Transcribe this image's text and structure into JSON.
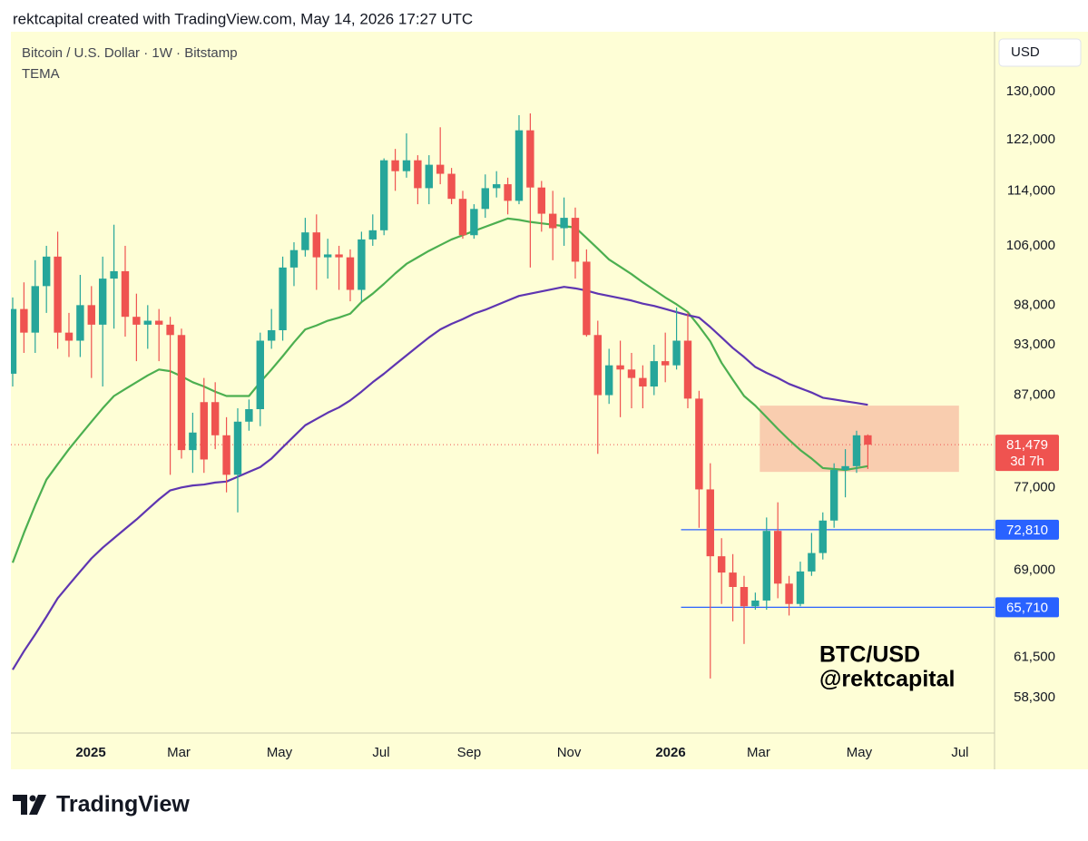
{
  "header": "rektcapital created with TradingView.com, May 14, 2026 17:27 UTC",
  "footer": {
    "brand": "TradingView"
  },
  "chart_data": {
    "type": "candlestick",
    "title": "Bitcoin / U.S. Dollar · 1W · Bitstamp",
    "indicator": "TEMA",
    "currency": "USD",
    "yscale": "log",
    "ylim": [
      55640,
      140700
    ],
    "yticks": [
      {
        "value": 130000,
        "label": "130,000"
      },
      {
        "value": 122000,
        "label": "122,000"
      },
      {
        "value": 114000,
        "label": "114,000"
      },
      {
        "value": 106000,
        "label": "106,000"
      },
      {
        "value": 98000,
        "label": "98,000"
      },
      {
        "value": 93000,
        "label": "93,000"
      },
      {
        "value": 87000,
        "label": "87,000"
      },
      {
        "value": 77000,
        "label": "77,000"
      },
      {
        "value": 69000,
        "label": "69,000"
      },
      {
        "value": 61500,
        "label": "61,500"
      },
      {
        "value": 58300,
        "label": "58,300"
      }
    ],
    "xlim": [
      -0.16,
      87.26
    ],
    "xticks": [
      {
        "value": 6.94,
        "label": "2025"
      },
      {
        "value": 14.76,
        "label": "Mar"
      },
      {
        "value": 23.71,
        "label": "May"
      },
      {
        "value": 32.74,
        "label": "Jul"
      },
      {
        "value": 40.56,
        "label": "Sep"
      },
      {
        "value": 49.44,
        "label": "Nov"
      },
      {
        "value": 58.47,
        "label": "2026"
      },
      {
        "value": 66.29,
        "label": "Mar"
      },
      {
        "value": 75.24,
        "label": "May"
      },
      {
        "value": 84.19,
        "label": "Jul"
      }
    ],
    "up_color": "#26a69a",
    "down_color": "#ef5350",
    "open": [
      89500,
      97500,
      94500,
      100500,
      104500,
      94500,
      93500,
      98000,
      95500,
      101500,
      102500,
      96500,
      95500,
      96000,
      95500,
      94200,
      80900,
      86200,
      86200,
      82500,
      78300,
      84000,
      85400,
      93500,
      94800,
      103000,
      105400,
      107900,
      104400,
      104800,
      104400,
      100000,
      106900,
      108200,
      118700,
      117000,
      118700,
      114400,
      118000,
      116600,
      112800,
      107500,
      111300,
      114400,
      115000,
      112500,
      123500,
      114500,
      110600,
      108500,
      110000,
      103800,
      94200,
      87000,
      90500,
      90000,
      89000,
      88000,
      91000,
      90500,
      93500,
      86600,
      76800,
      70300,
      68800,
      67500,
      65800,
      66300,
      72700,
      67800,
      66000,
      68900,
      70600,
      73700,
      78800,
      79200,
      82500
    ],
    "high": [
      99000,
      101000,
      104000,
      106000,
      108000,
      97000,
      102000,
      100500,
      104500,
      109000,
      106000,
      99500,
      98000,
      97500,
      96500,
      95000,
      85000,
      89000,
      88500,
      84500,
      85500,
      86500,
      94500,
      97500,
      104500,
      106500,
      110000,
      110500,
      107000,
      106000,
      105500,
      108000,
      110500,
      119000,
      120500,
      123000,
      119500,
      119500,
      124000,
      117500,
      114000,
      112000,
      116500,
      117000,
      116000,
      126000,
      126300,
      115500,
      114000,
      113000,
      111500,
      105500,
      96000,
      92500,
      93500,
      92000,
      90500,
      93000,
      94500,
      97700,
      97000,
      87500,
      79500,
      72000,
      70500,
      68500,
      67000,
      74000,
      75500,
      68500,
      69800,
      72500,
      74500,
      79500,
      81000,
      83000,
      82600
    ],
    "low": [
      88000,
      92000,
      92000,
      97000,
      92500,
      91500,
      91500,
      89000,
      88000,
      95000,
      94000,
      91000,
      92500,
      91000,
      78300,
      80000,
      78500,
      78500,
      81000,
      76500,
      74500,
      83000,
      83500,
      92500,
      93500,
      100500,
      104500,
      100000,
      101500,
      100000,
      98500,
      98500,
      106000,
      107500,
      114000,
      116000,
      112000,
      112000,
      115000,
      112000,
      107000,
      107000,
      110000,
      113000,
      110500,
      112000,
      103000,
      108000,
      104000,
      106000,
      101500,
      94000,
      80500,
      86000,
      84500,
      85500,
      85500,
      87000,
      88500,
      90000,
      85500,
      73000,
      59800,
      66000,
      64500,
      62600,
      65500,
      65500,
      66500,
      65000,
      65800,
      68500,
      70000,
      73000,
      76000,
      78500,
      78900
    ],
    "close": [
      97500,
      94500,
      100500,
      104500,
      94500,
      93500,
      98000,
      95500,
      101500,
      102500,
      96500,
      95500,
      96000,
      95500,
      94200,
      80900,
      82800,
      79900,
      82500,
      78300,
      84000,
      85400,
      93500,
      94800,
      103000,
      105400,
      107900,
      104400,
      104800,
      104400,
      100000,
      106900,
      108200,
      118700,
      117000,
      118700,
      114400,
      118000,
      116600,
      112800,
      107500,
      111300,
      114400,
      115000,
      112500,
      123500,
      114500,
      110600,
      108500,
      110000,
      103800,
      94200,
      87000,
      90500,
      90000,
      89000,
      88000,
      91000,
      90500,
      93500,
      86600,
      76800,
      70300,
      68800,
      67500,
      65800,
      66300,
      72700,
      67800,
      66000,
      68900,
      70600,
      73700,
      78800,
      79200,
      82500,
      81479
    ],
    "lines": [
      {
        "color": "#4caf50",
        "values": [
          69700,
          72500,
          75200,
          77800,
          79400,
          81000,
          82500,
          84000,
          85500,
          86900,
          87700,
          88500,
          89300,
          90000,
          89800,
          89200,
          88500,
          88000,
          87400,
          86900,
          86900,
          86900,
          88500,
          90000,
          91600,
          93300,
          94900,
          95400,
          96000,
          96400,
          96900,
          98400,
          99500,
          100800,
          102200,
          103500,
          104400,
          105300,
          106100,
          106900,
          107500,
          108100,
          108700,
          109300,
          109900,
          109700,
          109400,
          109200,
          109000,
          108800,
          108600,
          107100,
          105600,
          104100,
          103100,
          102100,
          101000,
          100000,
          99000,
          98100,
          97100,
          95300,
          93400,
          90800,
          88800,
          86900,
          85800,
          84500,
          83200,
          82000,
          80900,
          80000,
          79000,
          78900,
          78800,
          79000,
          79200
        ]
      },
      {
        "color": "#5e35b1",
        "values": [
          60500,
          62000,
          63400,
          64900,
          66500,
          67700,
          68900,
          70100,
          71100,
          72000,
          72900,
          73800,
          74800,
          75800,
          76700,
          77000,
          77200,
          77300,
          77500,
          77600,
          78100,
          78600,
          79100,
          80000,
          81200,
          82400,
          83600,
          84300,
          85000,
          85600,
          86400,
          87400,
          88500,
          89500,
          90600,
          91700,
          92800,
          93900,
          94900,
          95600,
          96200,
          96900,
          97400,
          98000,
          98600,
          99200,
          99500,
          99800,
          100100,
          100400,
          100200,
          99900,
          99500,
          99200,
          98900,
          98600,
          98200,
          97900,
          97500,
          97100,
          96700,
          96400,
          95200,
          93900,
          92600,
          91500,
          90300,
          89600,
          89000,
          88300,
          87800,
          87300,
          86700,
          86500,
          86300,
          86100,
          85900
        ]
      }
    ],
    "levels": [
      {
        "value": 72810,
        "label": "72,810",
        "color": "#2962ff",
        "x_start": 59.4
      },
      {
        "value": 65710,
        "label": "65,710",
        "color": "#2962ff",
        "x_start": 59.4
      }
    ],
    "last_price": {
      "value": 81479,
      "label": "81,479",
      "countdown": "3d 7h",
      "color": "#ef5350"
    },
    "zone": {
      "xlim": [
        66.4,
        84.1
      ],
      "ylim": [
        78600,
        85800
      ],
      "color": "#f8c4a8"
    },
    "annotation": [
      "BTC/USD",
      "@rektcapital"
    ]
  }
}
